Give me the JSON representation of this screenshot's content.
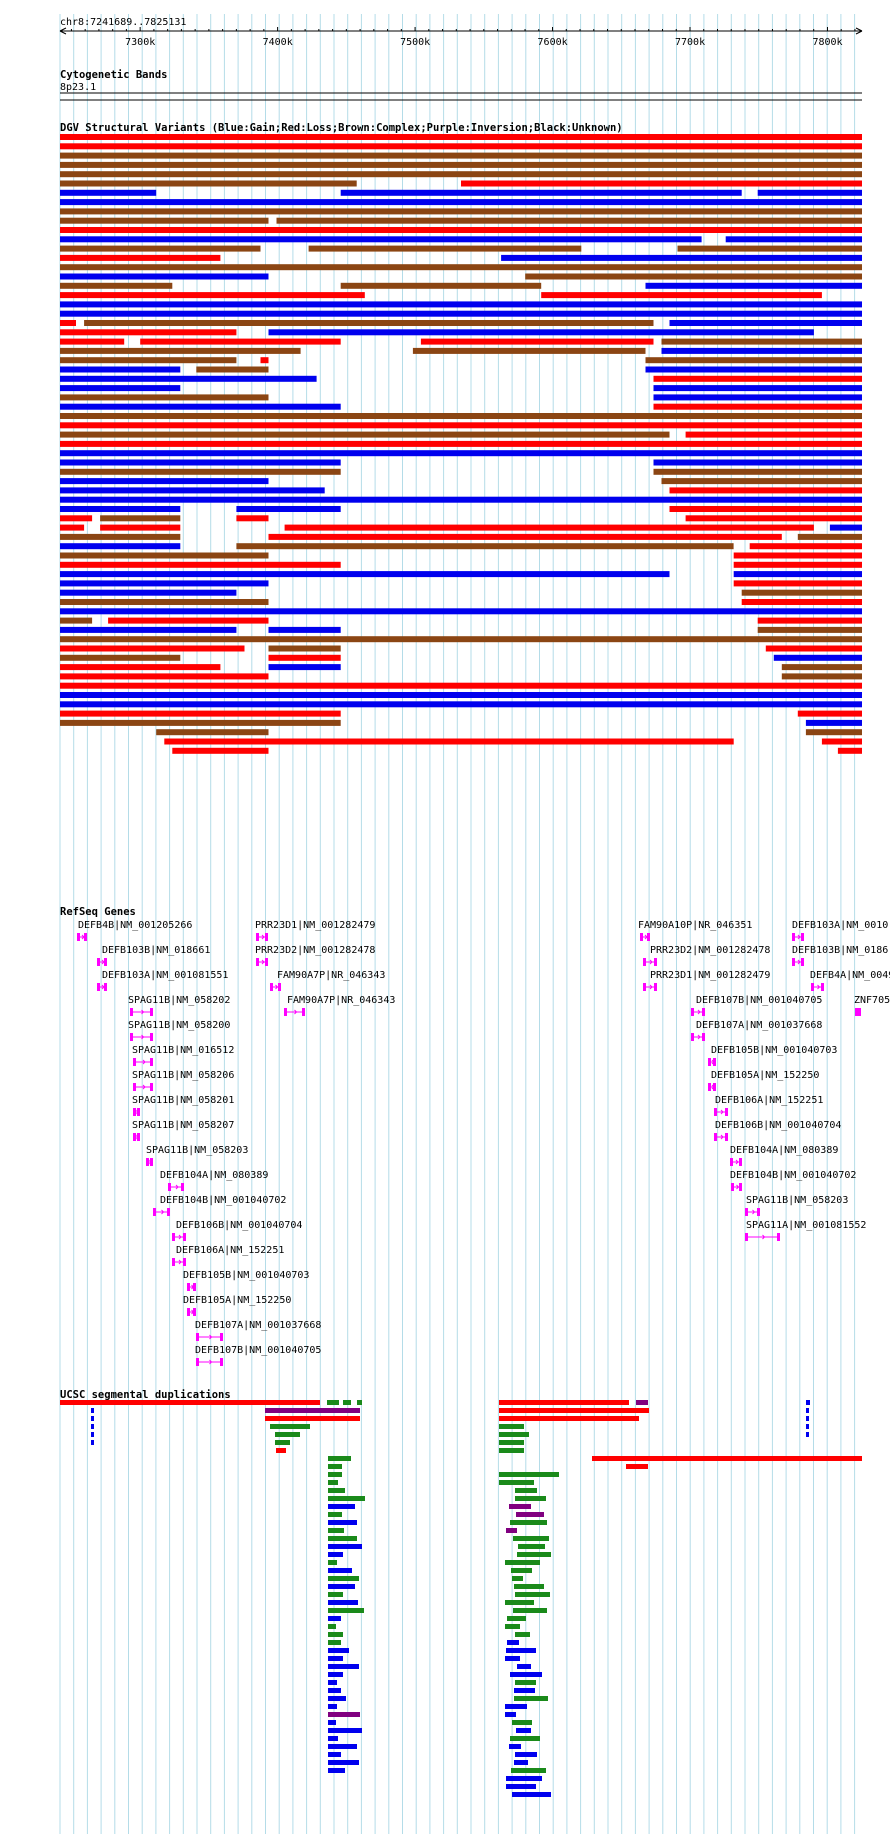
{
  "position_label": "chr8:7241689..7825131",
  "ruler": {
    "ticks": [
      "7300k",
      "7400k",
      "7500k",
      "7600k",
      "7700k",
      "7800k"
    ],
    "range_kb": [
      7241.689,
      7825.131
    ]
  },
  "tracks": {
    "cyto": {
      "title": "Cytogenetic Bands",
      "band": "8p23.1"
    },
    "dgv": {
      "title": "DGV Structural Variants (Blue:Gain;Red:Loss;Brown:Complex;Purple:Inversion;Black:Unknown)",
      "colors": {
        "gain": "#0000ee",
        "loss": "#ff0000",
        "complex": "#8b4513",
        "inversion": "#800080",
        "unknown": "#000000"
      }
    },
    "refseq": {
      "title": "RefSeq Genes",
      "color": "#ff00ff",
      "labels": [
        "DEFB4B|NM_001205266",
        "DEFB103B|NM_018661",
        "DEFB103A|NM_001081551",
        "SPAG11B|NM_058202",
        "SPAG11B|NM_058200",
        "SPAG11B|NM_016512",
        "SPAG11B|NM_058206",
        "SPAG11B|NM_058201",
        "SPAG11B|NM_058207",
        "SPAG11B|NM_058203",
        "DEFB104A|NM_080389",
        "DEFB104B|NM_001040702",
        "DEFB106B|NM_001040704",
        "DEFB106A|NM_152251",
        "DEFB105B|NM_001040703",
        "DEFB105A|NM_152250",
        "DEFB107A|NM_001037668",
        "DEFB107B|NM_001040705",
        "PRR23D1|NM_001282479",
        "PRR23D2|NM_001282478",
        "FAM90A7P|NR_046343",
        "FAM90A7P|NR_046343",
        "FAM90A10P|NR_046351",
        "PRR23D2|NM_001282478",
        "PRR23D1|NM_001282479",
        "DEFB107B|NM_001040705",
        "DEFB107A|NM_001037668",
        "DEFB105B|NM_001040703",
        "DEFB105A|NM_152250",
        "DEFB106A|NM_152251",
        "DEFB106B|NM_001040704",
        "DEFB104A|NM_080389",
        "DEFB104B|NM_001040702",
        "SPAG11B|NM_058203",
        "SPAG11A|NM_001081552",
        "DEFB103A|NM_0010",
        "DEFB103B|NM_0186",
        "DEFB4A|NM_0049",
        "ZNF705"
      ]
    },
    "segdup": {
      "title": "UCSC segmental duplications",
      "colors": {
        "red": "#ff0000",
        "purple": "#800080",
        "green": "#1a8a1a",
        "blue": "#0000ee"
      }
    }
  }
}
